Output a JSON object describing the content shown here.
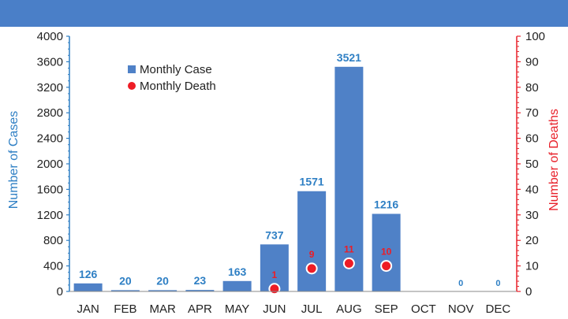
{
  "colors": {
    "banner": "#4a7fc8",
    "bar": "#4f81c7",
    "death": "#ee1c25",
    "left_axis": "#2e7fc4",
    "right_axis": "#e8202a"
  },
  "chart_data": {
    "type": "bar",
    "categories": [
      "JAN",
      "FEB",
      "MAR",
      "APR",
      "MAY",
      "JUN",
      "JUL",
      "AUG",
      "SEP",
      "OCT",
      "NOV",
      "DEC"
    ],
    "series": [
      {
        "name": "Monthly Case",
        "type": "bar",
        "axis": "left",
        "values": [
          126,
          20,
          20,
          23,
          163,
          737,
          1571,
          3521,
          1216,
          null,
          0,
          0
        ],
        "labels": [
          "126",
          "20",
          "20",
          "23",
          "163",
          "737",
          "1571",
          "3521",
          "1216",
          "",
          "0",
          "0"
        ]
      },
      {
        "name": "Monthly Death",
        "type": "scatter",
        "axis": "right",
        "values": [
          null,
          null,
          null,
          null,
          null,
          1,
          9,
          11,
          10,
          null,
          null,
          null
        ],
        "labels": [
          "",
          "",
          "",
          "",
          "",
          "1",
          "9",
          "11",
          "10",
          "",
          "",
          ""
        ]
      }
    ],
    "ylabel": "Number of Cases",
    "y2label": "Number of Deaths",
    "ylim": [
      0,
      4000
    ],
    "y2lim": [
      0,
      100
    ],
    "yticks": [
      "0",
      "400",
      "800",
      "1200",
      "1600",
      "2000",
      "2400",
      "2800",
      "3200",
      "3600",
      "4000"
    ],
    "y2ticks": [
      "0",
      "10",
      "20",
      "30",
      "40",
      "50",
      "60",
      "70",
      "80",
      "90",
      "100"
    ],
    "legend_position": "top-left",
    "grid": false
  }
}
